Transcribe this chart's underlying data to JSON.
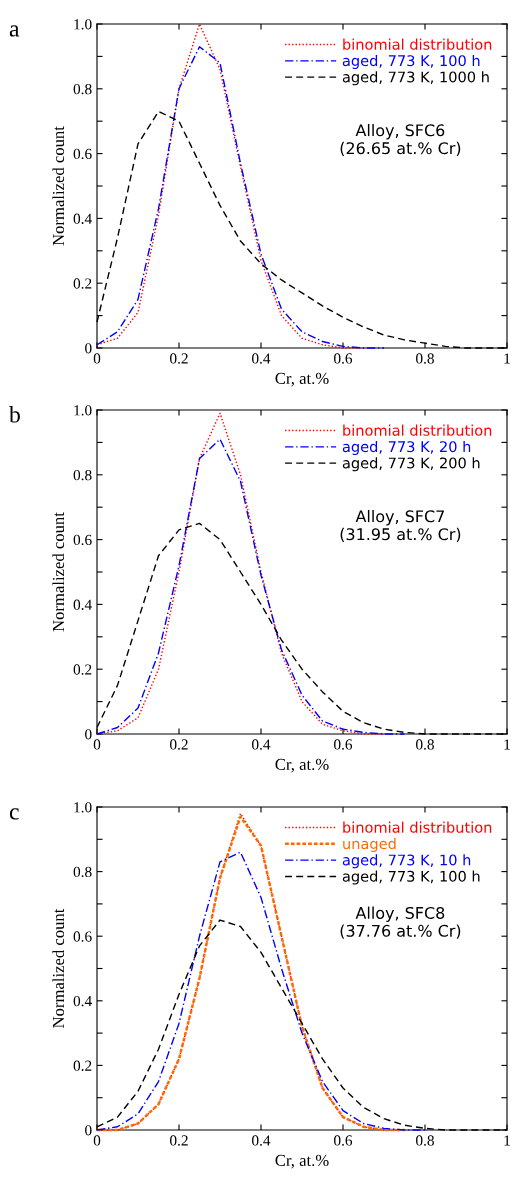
{
  "chart_data": [
    {
      "type": "line",
      "xlabel": "Cr, at.%",
      "ylabel": "Normalized count",
      "annotations": [
        "a",
        "Alloy, SFC6\n(26.65 at.% Cr)"
      ],
      "x": [
        0,
        0.05,
        0.1,
        0.15,
        0.2,
        0.25,
        0.3,
        0.35,
        0.4,
        0.45,
        0.5,
        0.55,
        0.6,
        0.65,
        0.7,
        0.75,
        0.8,
        0.85,
        0.9,
        0.95,
        1
      ],
      "series": [
        {
          "name": "binomial distribution",
          "color": "#ff0000",
          "line_style": "dotted",
          "values": [
            0.01,
            0.03,
            0.11,
            0.41,
            0.8,
            1.0,
            0.86,
            0.56,
            0.27,
            0.1,
            0.03,
            0.01,
            0,
            0,
            null,
            null,
            null,
            null,
            null,
            null,
            null
          ]
        },
        {
          "name": "aged, 773 K, 100 h",
          "color": "#0000ff",
          "line_style": "dashdot",
          "values": [
            0.01,
            0.05,
            0.15,
            0.43,
            0.8,
            0.93,
            0.88,
            0.57,
            0.29,
            0.12,
            0.05,
            0.02,
            0.005,
            0,
            0,
            null,
            null,
            null,
            null,
            null,
            null
          ]
        },
        {
          "name": "aged, 773 K, 1000 h",
          "color": "#000000",
          "line_style": "dashed",
          "values": [
            0.08,
            0.34,
            0.63,
            0.73,
            0.7,
            0.57,
            0.44,
            0.33,
            0.26,
            0.21,
            0.17,
            0.13,
            0.095,
            0.065,
            0.04,
            0.025,
            0.015,
            0.005,
            0,
            0,
            0
          ]
        }
      ],
      "xlim": [
        0,
        1
      ],
      "ylim": [
        0,
        1
      ],
      "xticks": [
        0,
        0.2,
        0.4,
        0.6,
        0.8,
        1
      ],
      "yticks": [
        0,
        {
          "value": 0.1,
          "label": null
        },
        0.2,
        {
          "value": 0.3,
          "label": null
        },
        0.4,
        {
          "value": 0.5,
          "label": null
        },
        0.6,
        {
          "value": 0.7,
          "label": null
        },
        0.8,
        {
          "value": 0.9,
          "label": null
        },
        {
          "value": 1,
          "label": "1.0"
        }
      ],
      "legend": "top right",
      "grid": false
    },
    {
      "type": "line",
      "xlabel": "Cr, at.%",
      "ylabel": "Normalized count",
      "annotations": [
        "b",
        "Alloy, SFC7\n(31.95 at.% Cr)"
      ],
      "x": [
        0,
        0.05,
        0.1,
        0.15,
        0.2,
        0.25,
        0.3,
        0.35,
        0.4,
        0.45,
        0.5,
        0.55,
        0.6,
        0.65,
        0.7,
        0.75,
        0.8,
        0.85,
        0.9,
        0.95,
        1
      ],
      "series": [
        {
          "name": "binomial distribution",
          "color": "#ff0000",
          "line_style": "dotted",
          "values": [
            0,
            0.01,
            0.05,
            0.2,
            0.5,
            0.85,
            0.99,
            0.8,
            0.5,
            0.25,
            0.1,
            0.03,
            0.01,
            0,
            0,
            null,
            null,
            null,
            null,
            null,
            null
          ]
        },
        {
          "name": "aged, 773 K, 20 h",
          "color": "#0000ff",
          "line_style": "dashdot",
          "values": [
            0,
            0.02,
            0.08,
            0.25,
            0.52,
            0.85,
            0.91,
            0.78,
            0.49,
            0.26,
            0.12,
            0.04,
            0.015,
            0.005,
            0,
            0,
            null,
            null,
            null,
            null,
            null
          ]
        },
        {
          "name": "aged, 773 K, 200 h",
          "color": "#000000",
          "line_style": "dashed",
          "values": [
            0.02,
            0.15,
            0.35,
            0.55,
            0.63,
            0.65,
            0.6,
            0.5,
            0.4,
            0.29,
            0.2,
            0.13,
            0.07,
            0.035,
            0.015,
            0.005,
            0,
            0,
            0,
            0,
            0
          ]
        }
      ],
      "xlim": [
        0,
        1
      ],
      "ylim": [
        0,
        1
      ],
      "xticks": [
        0,
        0.2,
        0.4,
        0.6,
        0.8,
        1
      ],
      "yticks": [
        0,
        {
          "value": 0.1,
          "label": null
        },
        0.2,
        {
          "value": 0.3,
          "label": null
        },
        0.4,
        {
          "value": 0.5,
          "label": null
        },
        0.6,
        {
          "value": 0.7,
          "label": null
        },
        0.8,
        {
          "value": 0.9,
          "label": null
        },
        {
          "value": 1,
          "label": "1.0"
        }
      ],
      "legend": "top right",
      "grid": false
    },
    {
      "type": "line",
      "xlabel": "Cr, at.%",
      "ylabel": "Normalized count",
      "annotations": [
        "c",
        "Alloy, SFC8\n(37.76 at.% Cr)"
      ],
      "x": [
        0,
        0.05,
        0.1,
        0.15,
        0.2,
        0.25,
        0.3,
        0.35,
        0.4,
        0.45,
        0.5,
        0.55,
        0.6,
        0.65,
        0.7,
        0.75,
        0.8,
        0.85,
        0.9,
        0.95,
        1
      ],
      "series": [
        {
          "name": "binomial distribution",
          "color": "#ff0000",
          "line_style": "dotted",
          "values": [
            0,
            0,
            0.02,
            0.08,
            0.22,
            0.47,
            0.78,
            0.98,
            0.88,
            0.6,
            0.32,
            0.13,
            0.04,
            0.01,
            0,
            null,
            null,
            null,
            null,
            null,
            null
          ]
        },
        {
          "name": "unaged",
          "color": "#ff6a00",
          "line_style": "dashed",
          "values": [
            0,
            0,
            0.02,
            0.08,
            0.22,
            0.47,
            0.78,
            0.97,
            0.88,
            0.6,
            0.32,
            0.13,
            0.04,
            0.01,
            0,
            0,
            null,
            null,
            null,
            null,
            null
          ]
        },
        {
          "name": "aged, 773 K, 10 h",
          "color": "#0000ff",
          "line_style": "dashdot",
          "values": [
            0,
            0.01,
            0.05,
            0.15,
            0.33,
            0.6,
            0.83,
            0.86,
            0.72,
            0.5,
            0.3,
            0.15,
            0.06,
            0.02,
            0.005,
            0,
            0,
            null,
            null,
            null,
            null
          ]
        },
        {
          "name": "aged, 773 K, 100 h",
          "color": "#000000",
          "line_style": "dashed",
          "values": [
            0.01,
            0.04,
            0.12,
            0.25,
            0.42,
            0.57,
            0.65,
            0.63,
            0.55,
            0.44,
            0.33,
            0.22,
            0.13,
            0.07,
            0.035,
            0.015,
            0.005,
            0,
            0,
            0,
            0
          ]
        }
      ],
      "xlim": [
        0,
        1
      ],
      "ylim": [
        0,
        1
      ],
      "xticks": [
        0,
        0.2,
        0.4,
        0.6,
        0.8,
        1
      ],
      "yticks": [
        0,
        {
          "value": 0.1,
          "label": null
        },
        0.2,
        {
          "value": 0.3,
          "label": null
        },
        0.4,
        {
          "value": 0.5,
          "label": null
        },
        0.6,
        {
          "value": 0.7,
          "label": null
        },
        0.8,
        {
          "value": 0.9,
          "label": null
        },
        {
          "value": 1,
          "label": "1.0"
        }
      ],
      "legend": "top right",
      "grid": false
    }
  ]
}
